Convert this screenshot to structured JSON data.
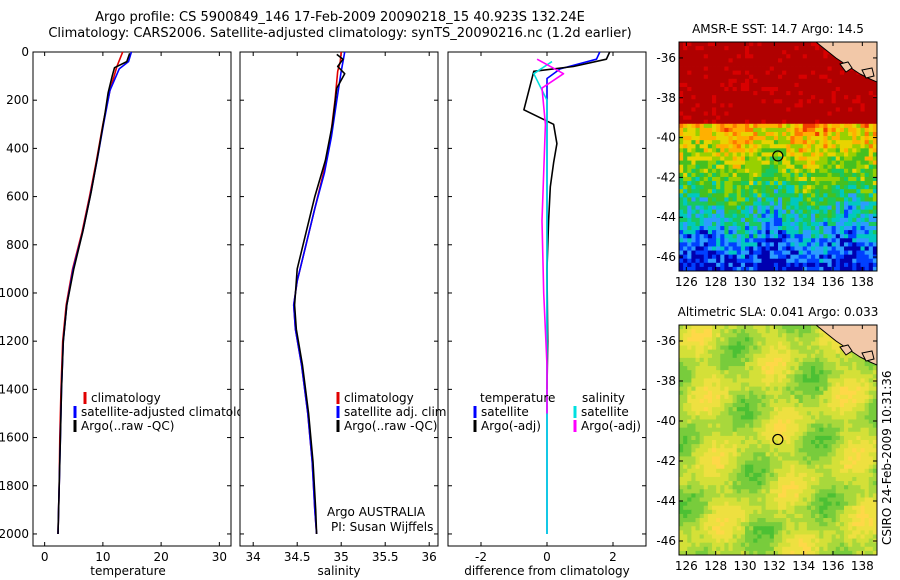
{
  "header": {
    "title_line1": "Argo profile: CS 5900849_146 17-Feb-2009 20090218_15 40.923S 132.24E",
    "title_line2": "Climatology: CARS2006. Satellite-adjusted climatology: synTS_20090216.nc (1.2d earlier)"
  },
  "footer": {
    "stamp": "CSIRO 24-Feb-2009 10:31:36"
  },
  "colors": {
    "climatology": "#e00000",
    "satellite": "#0000ff",
    "argo": "#000000",
    "sal_satellite": "#00e0e0",
    "sal_argo": "#ff00ff"
  },
  "chart_data": [
    {
      "type": "line",
      "id": "temperature",
      "xlabel": "temperature",
      "ylabel": "",
      "xlim": [
        -2,
        32
      ],
      "ylim": [
        2050,
        0
      ],
      "xticks": [
        0,
        10,
        20,
        30
      ],
      "xtick_labels": [
        "0",
        "10",
        "20",
        "30"
      ],
      "yticks": [
        0,
        200,
        400,
        600,
        800,
        1000,
        1200,
        1400,
        1600,
        1800,
        2000
      ],
      "ytick_labels": [
        "0",
        "200",
        "400",
        "600",
        "800",
        "1000",
        "1200",
        "1400",
        "1600",
        "1800",
        "2000"
      ],
      "legend": [
        "climatology",
        "satellite-adjusted climatology",
        "Argo(..raw -QC)"
      ],
      "series": [
        {
          "name": "climatology",
          "color_key": "climatology",
          "x": [
            13.4,
            12.9,
            12.4,
            11.2,
            10.0,
            8.9,
            7.7,
            6.4,
            4.8,
            3.7,
            3.1,
            2.8,
            2.6,
            2.5,
            2.4,
            2.3
          ],
          "y": [
            0,
            30,
            60,
            160,
            300,
            450,
            600,
            750,
            900,
            1050,
            1200,
            1400,
            1600,
            1800,
            1900,
            2000
          ]
        },
        {
          "name": "satellite-adjusted climatology",
          "color_key": "satellite",
          "x": [
            14.9,
            14.4,
            12.8,
            11.2,
            10.1,
            9.0,
            7.8,
            6.5,
            4.9,
            3.8,
            3.2,
            2.9,
            2.7,
            2.5,
            2.4,
            2.3
          ],
          "y": [
            0,
            40,
            70,
            160,
            300,
            450,
            600,
            750,
            900,
            1050,
            1200,
            1400,
            1600,
            1800,
            1900,
            2000
          ]
        },
        {
          "name": "Argo(..raw -QC)",
          "color_key": "argo",
          "x": [
            14.6,
            14.1,
            12.0,
            11.6,
            10.9,
            10.4,
            9.2,
            8.0,
            6.6,
            5.0,
            3.8,
            3.2,
            2.9,
            2.7,
            2.5,
            2.4,
            2.3
          ],
          "y": [
            5,
            40,
            65,
            100,
            170,
            250,
            420,
            580,
            740,
            900,
            1050,
            1200,
            1400,
            1600,
            1800,
            1900,
            2000
          ]
        }
      ]
    },
    {
      "type": "line",
      "id": "salinity",
      "xlabel": "salinity",
      "ylabel": "",
      "xlim": [
        33.85,
        36.1
      ],
      "ylim": [
        2050,
        0
      ],
      "xticks": [
        34,
        34.5,
        35,
        35.5,
        36
      ],
      "xtick_labels": [
        "34",
        "34.5",
        "35",
        "35.5",
        "36"
      ],
      "legend": [
        "climatology",
        "satellite adj. clim.",
        "Argo(..raw -QC)"
      ],
      "annotation": [
        "Argo AUSTRALIA",
        "PI: Susan Wijffels"
      ],
      "series": [
        {
          "name": "climatology",
          "color_key": "climatology",
          "x": [
            35.0,
            34.99,
            34.96,
            34.93,
            34.88,
            34.8,
            34.7,
            34.6,
            34.5,
            34.46,
            34.48,
            34.55,
            34.62,
            34.67,
            34.7,
            34.72
          ],
          "y": [
            0,
            40,
            80,
            200,
            350,
            500,
            650,
            800,
            950,
            1050,
            1150,
            1300,
            1500,
            1700,
            1900,
            2000
          ]
        },
        {
          "name": "satellite adj. clim.",
          "color_key": "satellite",
          "x": [
            35.04,
            35.02,
            35.0,
            34.95,
            34.89,
            34.81,
            34.7,
            34.6,
            34.5,
            34.46,
            34.48,
            34.55,
            34.62,
            34.67,
            34.7,
            34.72
          ],
          "y": [
            0,
            40,
            80,
            200,
            350,
            500,
            650,
            800,
            950,
            1050,
            1150,
            1300,
            1500,
            1700,
            1900,
            2000
          ]
        },
        {
          "name": "Argo(..raw -QC)",
          "color_key": "argo",
          "x": [
            34.95,
            35.02,
            34.96,
            35.04,
            34.95,
            34.9,
            34.82,
            34.7,
            34.6,
            34.5,
            34.47,
            34.49,
            34.56,
            34.63,
            34.68,
            34.71,
            34.72
          ],
          "y": [
            10,
            30,
            60,
            90,
            150,
            300,
            450,
            600,
            750,
            900,
            1050,
            1150,
            1300,
            1500,
            1700,
            1900,
            2000
          ]
        }
      ]
    },
    {
      "type": "line",
      "id": "difference",
      "xlabel": "difference from climatology",
      "ylabel": "",
      "xlim": [
        -3,
        3
      ],
      "ylim": [
        2050,
        0
      ],
      "xticks": [
        -2,
        0,
        2
      ],
      "xtick_labels": [
        "-2",
        "0",
        "2"
      ],
      "legend_headers": [
        "temperature",
        "salinity"
      ],
      "legend": [
        "satellite",
        "Argo(-adj)",
        "satellite",
        "Argo(-adj)"
      ],
      "series": [
        {
          "name": "temperature satellite",
          "color_key": "satellite",
          "x": [
            1.6,
            1.5,
            0.4,
            0.0,
            0.0,
            0.0,
            0.0,
            0.0,
            0.0,
            0.0
          ],
          "y": [
            0,
            30,
            70,
            110,
            300,
            600,
            1000,
            1400,
            1800,
            2000
          ]
        },
        {
          "name": "temperature Argo(-adj)",
          "color_key": "argo",
          "x": [
            1.9,
            1.8,
            0.8,
            -0.4,
            -0.7,
            0.2,
            0.3,
            0.2,
            0.1,
            0.05,
            0.0,
            0.02,
            0.0
          ],
          "y": [
            0,
            30,
            60,
            80,
            240,
            300,
            380,
            460,
            560,
            700,
            900,
            1200,
            1400
          ]
        },
        {
          "name": "salinity satellite",
          "color_key": "sal_satellite",
          "x": [
            0.15,
            -0.4,
            0.0,
            0.0,
            0.0,
            0.0
          ],
          "y": [
            40,
            90,
            200,
            600,
            1200,
            2000
          ]
        },
        {
          "name": "salinity Argo(-adj)",
          "color_key": "sal_argo",
          "x": [
            -0.3,
            0.5,
            -0.15,
            -0.05,
            -0.1,
            -0.15,
            -0.1,
            0.0,
            0.0
          ],
          "y": [
            30,
            90,
            150,
            300,
            500,
            700,
            1000,
            1300,
            1500
          ]
        }
      ]
    },
    {
      "type": "heatmap",
      "id": "sst-map",
      "title": "AMSR-E SST: 14.7  Argo: 14.5",
      "xlim": [
        125.5,
        139
      ],
      "ylim": [
        -46.7,
        -35.2
      ],
      "xticks": [
        126,
        128,
        130,
        132,
        134,
        136,
        138
      ],
      "xtick_labels": [
        "126",
        "128",
        "130",
        "132",
        "134",
        "136",
        "138"
      ],
      "yticks": [
        -36,
        -38,
        -40,
        -42,
        -44,
        -46
      ],
      "ytick_labels": [
        "-36",
        "-38",
        "-40",
        "-42",
        "-44",
        "-46"
      ],
      "argo_position": {
        "lon": 132.24,
        "lat": -40.923
      }
    },
    {
      "type": "heatmap",
      "id": "sla-map",
      "title": "Altimetric SLA: 0.041  Argo: 0.033",
      "xlim": [
        125.5,
        139
      ],
      "ylim": [
        -46.7,
        -35.2
      ],
      "xticks": [
        126,
        128,
        130,
        132,
        134,
        136,
        138
      ],
      "xtick_labels": [
        "126",
        "128",
        "130",
        "132",
        "134",
        "136",
        "138"
      ],
      "yticks": [
        -36,
        -38,
        -40,
        -42,
        -44,
        -46
      ],
      "ytick_labels": [
        "-36",
        "-38",
        "-40",
        "-42",
        "-44",
        "-46"
      ],
      "argo_position": {
        "lon": 132.24,
        "lat": -40.923
      }
    }
  ]
}
